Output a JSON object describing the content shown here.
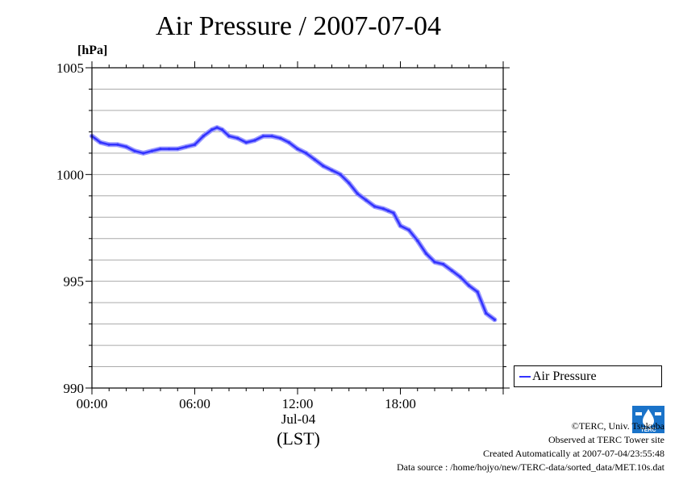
{
  "chart_data": {
    "type": "line",
    "title": "Air Pressure / 2007-07-04",
    "ylabel": "[hPa]",
    "ylim": [
      990,
      1005
    ],
    "yticks": [
      990,
      995,
      1000,
      1005
    ],
    "xlim_hours": [
      0,
      24
    ],
    "xtick_hours": [
      0,
      6,
      12,
      18
    ],
    "xtick_labels": [
      "00:00",
      "06:00",
      "12:00",
      "18:00"
    ],
    "x_date_label": "Jul-04",
    "x_axis_label": "(LST)",
    "grid": true,
    "legend_position": "right",
    "series": [
      {
        "name": "Air Pressure",
        "color": "#3333ff",
        "x": [
          0,
          0.5,
          1,
          1.5,
          2,
          2.5,
          3,
          3.5,
          4,
          4.5,
          5,
          5.5,
          6,
          6.5,
          7,
          7.3,
          7.6,
          8,
          8.5,
          9,
          9.5,
          10,
          10.5,
          11,
          11.5,
          12,
          12.5,
          13,
          13.5,
          14,
          14.5,
          15,
          15.5,
          16,
          16.5,
          17,
          17.3,
          17.6,
          18,
          18.5,
          19,
          19.5,
          20,
          20.5,
          21,
          21.5,
          22,
          22.5,
          23,
          23.5
        ],
        "y": [
          1001.8,
          1001.5,
          1001.4,
          1001.4,
          1001.3,
          1001.1,
          1001.0,
          1001.1,
          1001.2,
          1001.2,
          1001.2,
          1001.3,
          1001.4,
          1001.8,
          1002.1,
          1002.2,
          1002.1,
          1001.8,
          1001.7,
          1001.5,
          1001.6,
          1001.8,
          1001.8,
          1001.7,
          1001.5,
          1001.2,
          1001.0,
          1000.7,
          1000.4,
          1000.2,
          1000.0,
          999.6,
          999.1,
          998.8,
          998.5,
          998.4,
          998.3,
          998.2,
          997.6,
          997.4,
          996.9,
          996.3,
          995.9,
          995.8,
          995.5,
          995.2,
          994.8,
          994.5,
          993.5,
          993.2
        ]
      }
    ]
  },
  "footer": {
    "copyright": "©TERC, Univ. Tsukuba",
    "observed": "Observed at TERC Tower site",
    "created": "Created Automatically at 2007-07-04/23:55:48",
    "source": "Data source : /home/hojyo/new/TERC-data/sorted_data/MET.10s.dat"
  },
  "logo_text": "TERC"
}
